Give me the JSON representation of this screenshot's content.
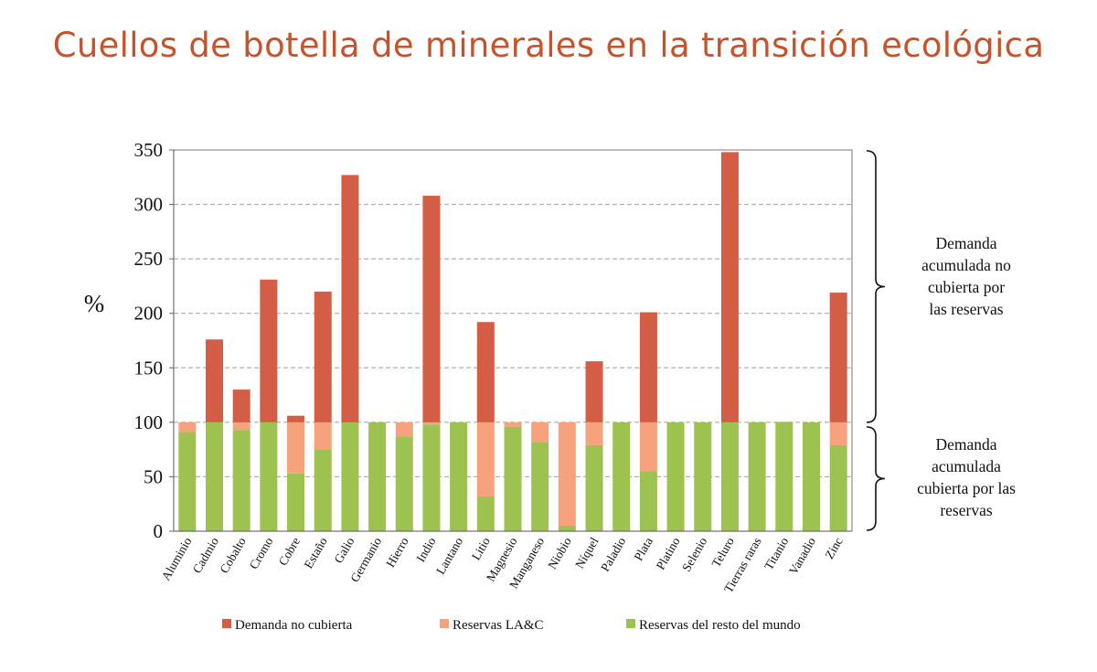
{
  "title": "Cuellos de botella de minerales en la transición ecológica",
  "chart_data": {
    "type": "bar",
    "stacked": true,
    "ylabel": "%",
    "ylim": [
      0,
      350
    ],
    "yticks": [
      0,
      50,
      100,
      150,
      200,
      250,
      300,
      350
    ],
    "grid": true,
    "legend_position": "bottom",
    "categories": [
      "Aluminio",
      "Cadmio",
      "Cobalto",
      "Cromo",
      "Cobre",
      "Estaño",
      "Galio",
      "Germanio",
      "Hierro",
      "Indio",
      "Lantano",
      "Litio",
      "Magnesio",
      "Manganeso",
      "Niobio",
      "Níquel",
      "Paladio",
      "Plata",
      "Platino",
      "Selenio",
      "Teluro",
      "Tierras raras",
      "Titanio",
      "Vanadio",
      "Zinc"
    ],
    "series": [
      {
        "name": "Reservas del resto del mundo",
        "color": "#9dc24f",
        "values": [
          91,
          100,
          93,
          100,
          53,
          75,
          100,
          100,
          87,
          98,
          100,
          32,
          96,
          82,
          5,
          79,
          100,
          55,
          100,
          100,
          100,
          100,
          100,
          100,
          79
        ]
      },
      {
        "name": "Reservas LA&C",
        "color": "#f6a27c",
        "values": [
          9,
          0,
          7,
          0,
          47,
          25,
          0,
          0,
          13,
          2,
          0,
          68,
          4,
          18,
          95,
          21,
          0,
          45,
          0,
          0,
          0,
          0,
          0.5,
          0,
          21
        ]
      },
      {
        "name": "Demanda no cubierta",
        "color": "#d45d45",
        "values": [
          0,
          76,
          30,
          131,
          6,
          120,
          227,
          0,
          0,
          208,
          0,
          92,
          0,
          0,
          0,
          56,
          0,
          101,
          0,
          0,
          248,
          0,
          0,
          0,
          119
        ]
      }
    ],
    "annotations": [
      {
        "label": "Demanda acumulada no cubierta por las reservas",
        "range": [
          100,
          350
        ]
      },
      {
        "label": "Demanda acumulada cubierta por las reservas",
        "range": [
          0,
          100
        ]
      }
    ]
  }
}
